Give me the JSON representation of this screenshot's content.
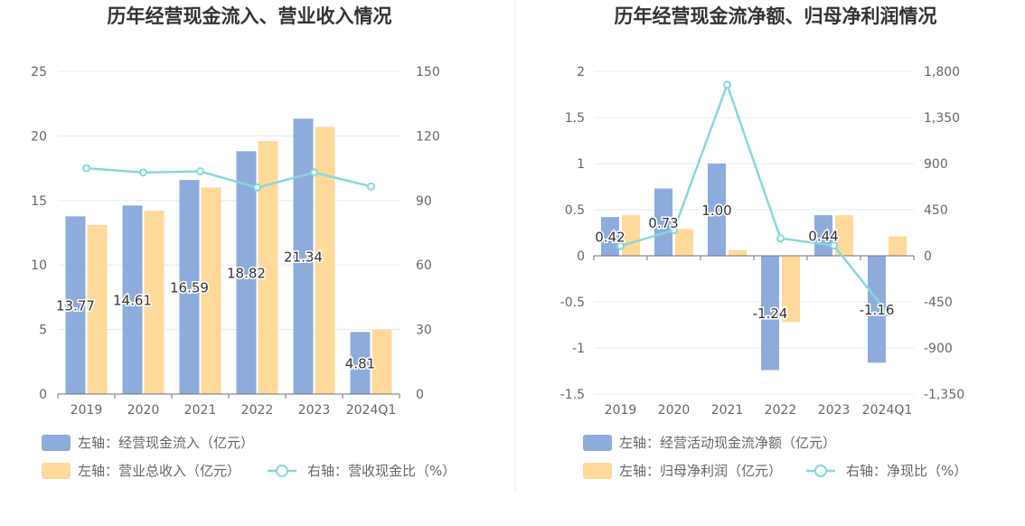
{
  "colors": {
    "blue": "#8dacdc",
    "yellow": "#ffd999",
    "cyan": "#85d8dc",
    "grid": "#e6e8f2",
    "axis": "#6e7079"
  },
  "chart_data": [
    {
      "type": "bar",
      "title": "历年经营现金流入、营业收入情况",
      "categories": [
        "2019",
        "2020",
        "2021",
        "2022",
        "2023",
        "2024Q1"
      ],
      "left_axis": {
        "ticks": [
          "0",
          "5",
          "10",
          "15",
          "20",
          "25"
        ],
        "ylim": [
          0,
          25
        ]
      },
      "right_axis": {
        "ticks": [
          "0",
          "30",
          "60",
          "90",
          "120",
          "150"
        ],
        "ylim": [
          0,
          150
        ]
      },
      "series": [
        {
          "name": "左轴：经营现金流入（亿元）",
          "axis": "left",
          "kind": "bar",
          "color": "#8dacdc",
          "values": [
            13.77,
            14.61,
            16.59,
            18.82,
            21.34,
            4.81
          ],
          "labels": [
            "13.77",
            "14.61",
            "16.59",
            "18.82",
            "21.34",
            "4.81"
          ]
        },
        {
          "name": "左轴：营业总收入（亿元）",
          "axis": "left",
          "kind": "bar",
          "color": "#ffd999",
          "values": [
            13.1,
            14.2,
            16.0,
            19.6,
            20.7,
            5.0
          ]
        },
        {
          "name": "右轴：营收现金比（%）",
          "axis": "right",
          "kind": "line",
          "color": "#85d8dc",
          "values": [
            105,
            103,
            103.5,
            96,
            103,
            96.5
          ]
        }
      ],
      "legend_rows": [
        [
          "左轴：经营现金流入（亿元）"
        ],
        [
          "左轴：营业总收入（亿元）",
          "右轴：营收现金比（%）"
        ]
      ]
    },
    {
      "type": "bar",
      "title": "历年经营现金流净额、归母净利润情况",
      "categories": [
        "2019",
        "2020",
        "2021",
        "2022",
        "2023",
        "2024Q1"
      ],
      "left_axis": {
        "ticks": [
          "-1.5",
          "-1",
          "-0.5",
          "0",
          "0.5",
          "1",
          "1.5",
          "2"
        ],
        "ylim": [
          -1.5,
          2
        ]
      },
      "right_axis": {
        "ticks": [
          "-1,350",
          "-900",
          "-450",
          "0",
          "450",
          "900",
          "1,350",
          "1,800"
        ],
        "ylim": [
          -1350,
          1800
        ]
      },
      "series": [
        {
          "name": "左轴：经营活动现金流净额（亿元）",
          "axis": "left",
          "kind": "bar",
          "color": "#8dacdc",
          "values": [
            0.42,
            0.73,
            1.0,
            -1.24,
            0.44,
            -1.16
          ],
          "labels": [
            "0.42",
            "0.73",
            "1.00",
            "-1.24",
            "0.44",
            "-1.16"
          ]
        },
        {
          "name": "左轴：归母净利润（亿元）",
          "axis": "left",
          "kind": "bar",
          "color": "#ffd999",
          "values": [
            0.44,
            0.29,
            0.06,
            -0.72,
            0.44,
            0.21
          ]
        },
        {
          "name": "右轴：净现比（%）",
          "axis": "right",
          "kind": "line",
          "color": "#85d8dc",
          "values": [
            95,
            250,
            1670,
            170,
            100,
            -550
          ]
        }
      ],
      "legend_rows": [
        [
          "左轴：经营活动现金流净额（亿元）"
        ],
        [
          "左轴：归母净利润（亿元）",
          "右轴：净现比（%）"
        ]
      ]
    }
  ]
}
